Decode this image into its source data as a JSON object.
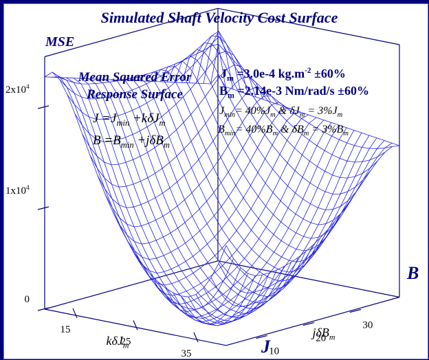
{
  "chart_data": {
    "type": "surface",
    "title": "Simulated Shaft Velocity Cost Surface",
    "zlabel": "MSE",
    "xlabel": "kδJ",
    "xlabel_sub": "m",
    "ylabel": "jδB",
    "ylabel_sub": "m",
    "xaxis_letter": "J",
    "yaxis_letter": "B",
    "x_ticks": [
      "15",
      "25",
      "35"
    ],
    "x_tick_values": [
      15,
      25,
      35
    ],
    "y_ticks": [
      "10",
      "20",
      "30"
    ],
    "y_tick_values": [
      10,
      20,
      30
    ],
    "z_ticks": [
      "0",
      "1x10",
      "2x10"
    ],
    "z_tick_exp": "4",
    "z_tick_values": [
      0,
      10000,
      20000
    ],
    "x_range": [
      10,
      40
    ],
    "y_range": [
      3,
      40
    ],
    "z_range": [
      0,
      25000
    ],
    "surface": {
      "x_min": 10,
      "x_max": 40,
      "x_steps": 24,
      "y_min": 3,
      "y_max": 40,
      "y_steps": 24,
      "corner_values": {
        "x10_y3": 23000,
        "x40_y3": 400,
        "x10_y40": 17500,
        "x40_y40": 15000
      },
      "minimum": {
        "x": 33,
        "y": 10,
        "mse": 300
      }
    },
    "wire_color": "#1e1ee6",
    "axis_color": "#00007a",
    "annotations": {
      "box_title_1": "Mean Squared Error",
      "box_title_2": "Response Surface",
      "eq_J": [
        "J =J",
        "min",
        " +kδJ",
        "m"
      ],
      "eq_B": [
        "B =B",
        "min",
        " +jδB",
        "m"
      ],
      "param_Jm": [
        "J",
        "m",
        " =3.0e-4 kg.m",
        "-2",
        " ±60%"
      ],
      "param_Bm": [
        "B",
        "m",
        " =2.14e-3 Nm/rad/s ±60%"
      ],
      "param_Jmin": [
        "J",
        "min",
        "= 40%J",
        "m",
        " & δJ",
        "m",
        " = 3%J",
        "m"
      ],
      "param_Bmin": [
        "B",
        "min",
        "= 40%B",
        "m",
        " & δB",
        "m",
        " = 3%B",
        "m"
      ]
    }
  }
}
